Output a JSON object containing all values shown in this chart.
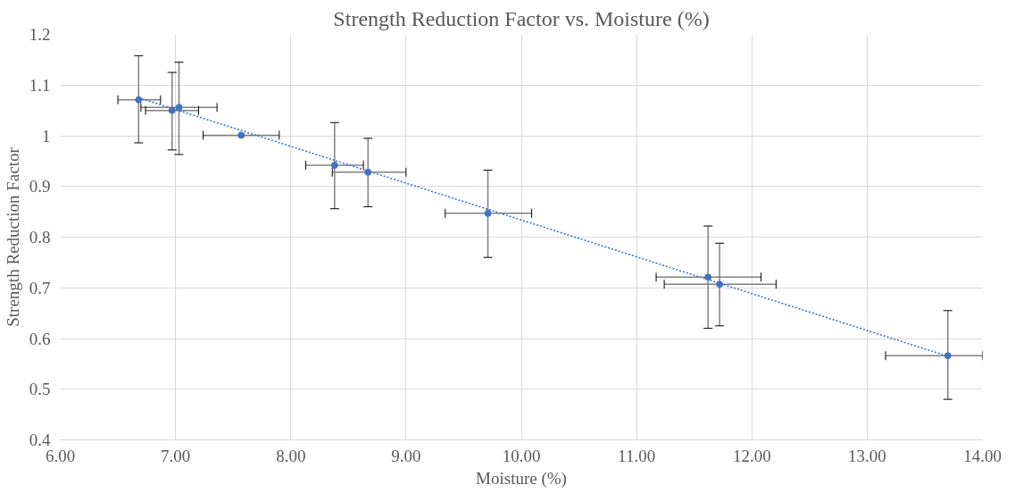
{
  "chart_data": {
    "type": "scatter",
    "title": "Strength Reduction Factor vs. Moisture (%)",
    "xlabel": "Moisture (%)",
    "ylabel": "Strength Reduction Factor",
    "xlim": [
      6,
      14
    ],
    "ylim": [
      0.4,
      1.2
    ],
    "xticks": [
      {
        "value": 6,
        "label": "6.00"
      },
      {
        "value": 7,
        "label": "7.00"
      },
      {
        "value": 8,
        "label": "8.00"
      },
      {
        "value": 9,
        "label": "9.00"
      },
      {
        "value": 10,
        "label": "10.00"
      },
      {
        "value": 11,
        "label": "11.00"
      },
      {
        "value": 12,
        "label": "12.00"
      },
      {
        "value": 13,
        "label": "13.00"
      },
      {
        "value": 14,
        "label": "14.00"
      }
    ],
    "yticks": [
      0.4,
      0.5,
      0.6,
      0.7,
      0.8,
      0.9,
      1,
      1.1,
      1.2
    ],
    "grid": true,
    "marker": "circle",
    "series": [
      {
        "color": "#4472c4",
        "x": [
          6.68,
          6.97,
          7.03,
          7.57,
          8.38,
          8.67,
          9.71,
          11.62,
          11.72,
          13.7
        ],
        "values": [
          1.071,
          1.05,
          1.056,
          1.001,
          0.942,
          0.928,
          0.847,
          0.721,
          0.707,
          0.566
        ],
        "errors": [
          [
            0.986,
            1.158
          ],
          [
            0.972,
            1.125
          ],
          [
            0.963,
            1.145
          ],
          null,
          [
            0.856,
            1.026
          ],
          [
            0.86,
            0.995
          ],
          [
            0.76,
            0.932
          ],
          [
            0.62,
            0.822
          ],
          [
            0.625,
            0.788
          ],
          [
            0.48,
            0.655
          ]
        ],
        "xerrors": [
          [
            6.5,
            6.87
          ],
          [
            6.74,
            7.2
          ],
          [
            6.7,
            7.36
          ],
          [
            7.24,
            7.9
          ],
          [
            8.13,
            8.63
          ],
          [
            8.36,
            9.0
          ],
          [
            9.34,
            10.09
          ],
          [
            11.17,
            12.08
          ],
          [
            11.24,
            12.21
          ],
          [
            13.16,
            14.0
          ]
        ]
      },
      {
        "type": "line",
        "color": "#4472c4",
        "line_style": "dotted",
        "marker": "none",
        "x": [
          6.68,
          13.7
        ],
        "values": [
          1.075,
          0.565
        ]
      }
    ]
  }
}
